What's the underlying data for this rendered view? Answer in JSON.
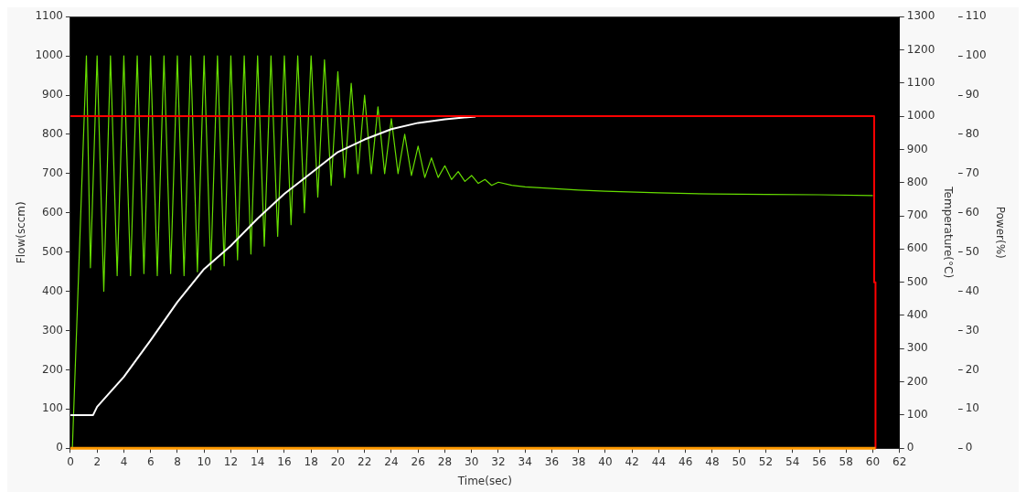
{
  "chart_data": {
    "type": "line",
    "xlabel": "Time(sec)",
    "ylabel": "Flow(sccm)",
    "y2label": "Temperature(°C)",
    "y3label": "Power(%)",
    "xlim": [
      0,
      62
    ],
    "xticks": [
      0,
      2,
      4,
      6,
      8,
      10,
      12,
      14,
      16,
      18,
      20,
      22,
      24,
      26,
      28,
      30,
      32,
      34,
      36,
      38,
      40,
      42,
      44,
      46,
      48,
      50,
      52,
      54,
      56,
      58,
      60,
      62
    ],
    "ylim": [
      0,
      1100
    ],
    "yticks": [
      0,
      100,
      200,
      300,
      400,
      500,
      600,
      700,
      800,
      900,
      1000,
      1100
    ],
    "y2lim": [
      0,
      1300
    ],
    "y2ticks": [
      0,
      100,
      200,
      300,
      400,
      500,
      600,
      700,
      800,
      900,
      1000,
      1100,
      1200,
      1300
    ],
    "y3lim": [
      0,
      110
    ],
    "y3ticks": [
      0,
      10,
      20,
      30,
      40,
      50,
      60,
      70,
      80,
      90,
      100,
      110
    ],
    "grid": false,
    "legend": false,
    "marker": "none",
    "line_style": "solid",
    "series": [
      {
        "color": "#66dd00",
        "x": [
          0.15,
          1.2,
          1.5,
          2,
          2.5,
          3,
          3.5,
          4,
          4.5,
          5,
          5.5,
          6,
          6.5,
          7,
          7.5,
          8,
          8.5,
          9,
          9.5,
          10,
          10.5,
          11,
          11.5,
          12,
          12.5,
          13,
          13.5,
          14,
          14.5,
          15,
          15.5,
          16,
          16.5,
          17,
          17.5,
          18,
          18.5,
          19,
          19.5,
          20,
          20.5,
          21,
          21.5,
          22,
          22.5,
          23,
          23.5,
          24,
          24.5,
          25,
          25.5,
          26,
          26.5,
          27,
          27.5,
          28,
          28.5,
          29,
          29.5,
          30,
          30.5,
          31,
          31.5,
          32,
          33,
          34,
          36,
          38,
          40,
          44,
          48,
          52,
          56,
          60
        ],
        "values": [
          0,
          1000,
          460,
          1000,
          400,
          1000,
          440,
          1000,
          440,
          1000,
          445,
          1000,
          440,
          1000,
          445,
          1000,
          440,
          1000,
          450,
          1000,
          455,
          1000,
          465,
          1000,
          480,
          1000,
          495,
          1000,
          515,
          1000,
          540,
          1000,
          570,
          1000,
          600,
          1000,
          640,
          990,
          670,
          960,
          690,
          930,
          700,
          900,
          700,
          870,
          700,
          840,
          700,
          800,
          695,
          770,
          690,
          740,
          690,
          720,
          685,
          705,
          680,
          695,
          675,
          685,
          670,
          678,
          670,
          666,
          662,
          658,
          655,
          651,
          648,
          647,
          646,
          644
        ]
      },
      {
        "color": "#ffffff",
        "axis": "y2",
        "x": [
          0,
          1.7,
          2,
          4,
          6,
          8,
          10,
          12,
          14,
          16,
          18,
          20,
          22,
          24,
          26,
          28,
          30.3
        ],
        "values": [
          100,
          100,
          125,
          215,
          325,
          440,
          540,
          610,
          692,
          766,
          829,
          892,
          930,
          961,
          980,
          991,
          999
        ]
      },
      {
        "color": "#ff0000",
        "axis": "y2",
        "x": [
          0,
          60.1,
          60.1,
          60.2,
          60.2
        ],
        "values": [
          1000,
          1000,
          500,
          500,
          0
        ]
      },
      {
        "color": "#ff9900",
        "axis": "y3",
        "x": [
          0,
          60.2
        ],
        "values": [
          0,
          0
        ]
      }
    ]
  }
}
